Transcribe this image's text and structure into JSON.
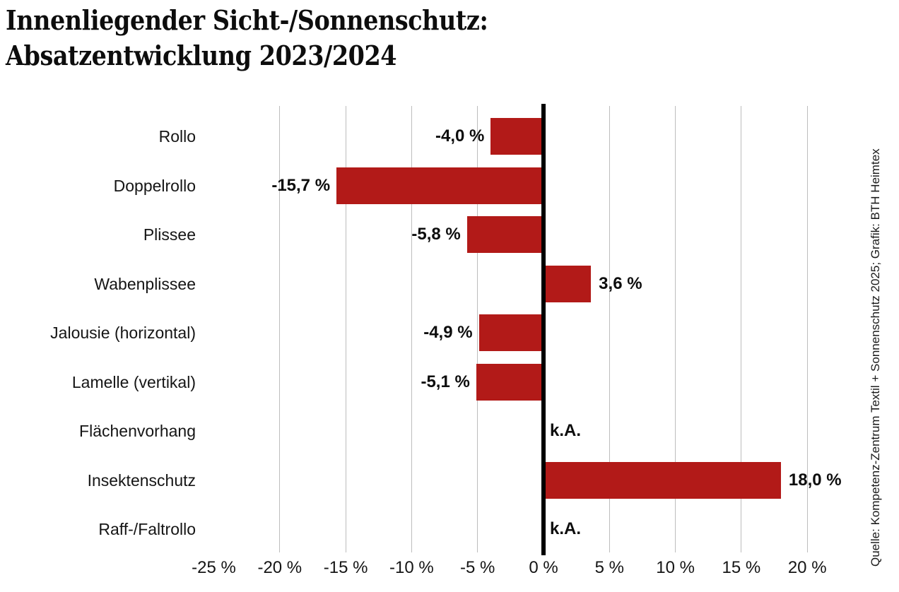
{
  "title": {
    "line1": "Innenliegender Sicht-/Sonnenschutz:",
    "line2": "Absatzentwicklung 2023/2024"
  },
  "source": "Quelle: Kompetenz-Zentrum Textil + Sonnenschutz 2025; Grafik: BTH Heimtex",
  "chart_data": {
    "type": "bar",
    "orientation": "horizontal",
    "title": "Innenliegender Sicht-/Sonnenschutz: Absatzentwicklung 2023/2024",
    "xlabel": "",
    "ylabel": "",
    "unit": "%",
    "categories": [
      "Rollo",
      "Doppelrollo",
      "Plissee",
      "Wabenplissee",
      "Jalousie (horizontal)",
      "Lamelle (vertikal)",
      "Flächenvorhang",
      "Insektenschutz",
      "Raff-/Faltrollo"
    ],
    "values": [
      -4.0,
      -15.7,
      -5.8,
      3.6,
      -4.9,
      -5.1,
      null,
      18.0,
      null
    ],
    "value_labels": [
      "-4,0 %",
      "-15,7 %",
      "-5,8 %",
      "3,6 %",
      "-4,9 %",
      "-5,1 %",
      "k.A.",
      "18,0 %",
      "k.A."
    ],
    "x_ticks": [
      -25,
      -20,
      -15,
      -10,
      -5,
      0,
      5,
      10,
      15,
      20
    ],
    "x_tick_labels": [
      "-25 %",
      "-20 %",
      "-15 %",
      "-10 %",
      "-5 %",
      "0 %",
      "5 %",
      "10 %",
      "15 %",
      "20 %"
    ],
    "xlim": [
      -27.5,
      22
    ],
    "gridlines_at": [
      -20,
      -15,
      -10,
      -5,
      5,
      10,
      15,
      20
    ],
    "grid": "vertical",
    "legend": "none",
    "bar_color": "#B21A18",
    "grid_color": "#BDBDBD",
    "axis_color": "#000000"
  }
}
